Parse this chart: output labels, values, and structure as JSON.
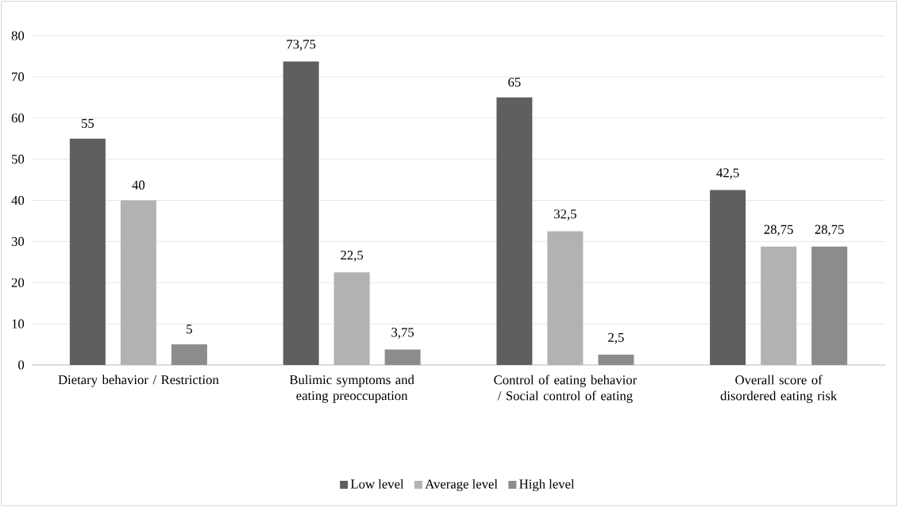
{
  "chart_data": {
    "type": "bar",
    "categories": [
      "Dietary behavior / Restriction",
      "Bulimic symptoms and eating preoccupation",
      "Control of eating behavior / Social control of eating",
      "Overall score of disordered eating risk"
    ],
    "series": [
      {
        "name": "Low level",
        "color": "#5f5f5f",
        "values": [
          55,
          73.75,
          65,
          42.5
        ],
        "value_labels": [
          "55",
          "73,75",
          "65",
          "42,5"
        ]
      },
      {
        "name": "Average level",
        "color": "#b2b2b2",
        "values": [
          40,
          22.5,
          32.5,
          28.75
        ],
        "value_labels": [
          "40",
          "22,5",
          "32,5",
          "28,75"
        ]
      },
      {
        "name": "High level",
        "color": "#8c8c8c",
        "values": [
          5,
          3.75,
          2.5,
          28.75
        ],
        "value_labels": [
          "5",
          "3,75",
          "2,5",
          "28,75"
        ]
      }
    ],
    "ylim": [
      0,
      80
    ],
    "yticks": [
      0,
      10,
      20,
      30,
      40,
      50,
      60,
      70,
      80
    ],
    "grid": "y",
    "legend": "bottom"
  }
}
